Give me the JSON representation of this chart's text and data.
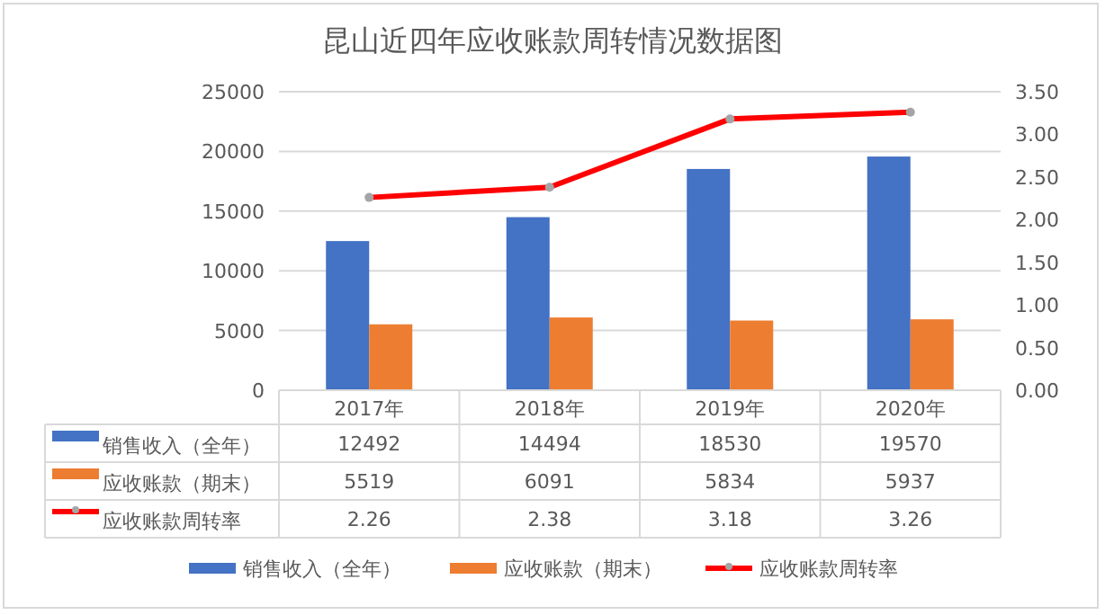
{
  "chart_data": {
    "type": "bar",
    "title": "昆山近四年应收账款周转情况数据图",
    "categories": [
      "2017年",
      "2018年",
      "2019年",
      "2020年"
    ],
    "series": [
      {
        "name": "销售收入（全年）",
        "color": "#4472c4",
        "values": [
          12492,
          14494,
          18530,
          19570
        ]
      },
      {
        "name": "应收账款（期末）",
        "color": "#ed7d31",
        "values": [
          5519,
          6091,
          5834,
          5937
        ]
      },
      {
        "name": "应收账款周转率",
        "type": "line",
        "axis": "y2",
        "color": "#ff0000",
        "values": [
          2.26,
          2.38,
          3.18,
          3.26
        ],
        "marker": "circle"
      }
    ],
    "ylim": [
      0,
      25000
    ],
    "yticks": [
      0,
      5000,
      10000,
      15000,
      20000,
      25000
    ],
    "y2lim": [
      0,
      3.5
    ],
    "y2ticks": [
      {
        "value": 0,
        "label": "0.00"
      },
      {
        "value": 0.5,
        "label": "0.50"
      },
      {
        "value": 1,
        "label": "1.00"
      },
      {
        "value": 1.5,
        "label": "1.50"
      },
      {
        "value": 2,
        "label": "2.00"
      },
      {
        "value": 2.5,
        "label": "2.50"
      },
      {
        "value": 3,
        "label": "3.00"
      },
      {
        "value": 3.5,
        "label": "3.50"
      }
    ],
    "grid": "y",
    "legend": "bottom",
    "data_labels": true
  }
}
